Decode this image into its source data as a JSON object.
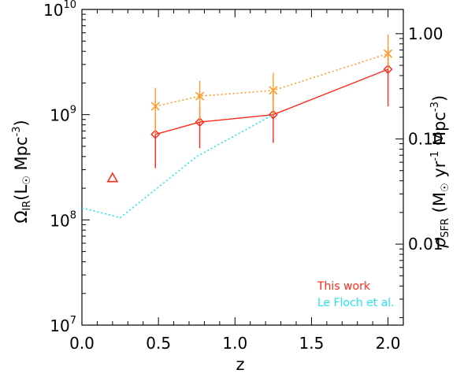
{
  "chart_data": {
    "type": "line",
    "xlabel": "z",
    "ylabel_left": {
      "sym": "Ω",
      "sub": "IR",
      "unit_pre": "(L",
      "unit_post": " Mpc",
      "exp": "-3",
      "close": ")"
    },
    "ylabel_right": {
      "sym": "ρ",
      "sub": "SFR",
      "unit_pre": " (M",
      "unit_mid": " yr",
      "exp1": "-1",
      "unit_post": " Mpc",
      "exp2": "-3",
      "close": ")"
    },
    "xlim": [
      0.0,
      2.1
    ],
    "ylim": [
      10000000,
      10000000000
    ],
    "yscale": "log",
    "x_ticks": [
      "0.0",
      "0.5",
      "1.0",
      "1.5",
      "2.0"
    ],
    "y_ticks_left": [
      {
        "base": "10",
        "exp": "7"
      },
      {
        "base": "10",
        "exp": "8"
      },
      {
        "base": "10",
        "exp": "9"
      },
      {
        "base": "10",
        "exp": "10"
      }
    ],
    "y_ticks_right": [
      "0.01",
      "0.10",
      "1.00"
    ],
    "right_axis_range": [
      0.0017,
      1.7
    ],
    "series": [
      {
        "name": "This work",
        "color": "#ff2a1a",
        "line": "solid",
        "marker": "diamond",
        "x": [
          0.48,
          0.77,
          1.25,
          2.0
        ],
        "y": [
          650000000,
          850000000,
          1000000000,
          2700000000
        ],
        "err_low": [
          310000000,
          480000000,
          540000000,
          1200000000
        ],
        "err_high": [
          950000000,
          1200000000,
          1600000000,
          4200000000
        ]
      },
      {
        "name": "This work (open triangle)",
        "color": "#ff2a1a",
        "marker": "triangle",
        "x": [
          0.2
        ],
        "y": [
          250000000
        ]
      },
      {
        "name": "This work (crosses)",
        "color": "#ff9a2a",
        "line": "dotted",
        "marker": "x",
        "x": [
          0.48,
          0.77,
          1.25,
          2.0
        ],
        "y": [
          1200000000,
          1500000000,
          1700000000,
          3800000000
        ],
        "err_low": [
          650000000,
          850000000,
          1000000000,
          2700000000
        ],
        "err_high": [
          1800000000,
          2100000000,
          2500000000,
          5800000000
        ]
      },
      {
        "name": "Le Floch et al.",
        "color": "#22e6ee",
        "line": "dotted",
        "x": [
          0.0,
          0.25,
          0.75,
          1.25
        ],
        "y": [
          130000000,
          105000000,
          400000000,
          1000000000
        ]
      }
    ],
    "legend": {
      "placement": "bottom-right",
      "entries": [
        {
          "label": "This work",
          "color": "#ff2a1a"
        },
        {
          "label": "Le Floch et al.",
          "color": "#22e6ee"
        }
      ]
    }
  }
}
